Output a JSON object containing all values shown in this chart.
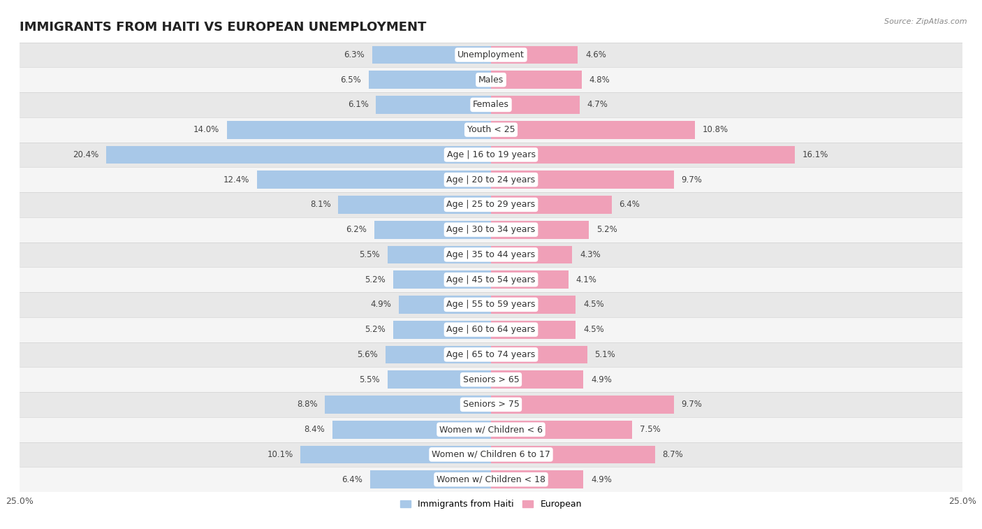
{
  "title": "IMMIGRANTS FROM HAITI VS EUROPEAN UNEMPLOYMENT",
  "source": "Source: ZipAtlas.com",
  "categories": [
    "Unemployment",
    "Males",
    "Females",
    "Youth < 25",
    "Age | 16 to 19 years",
    "Age | 20 to 24 years",
    "Age | 25 to 29 years",
    "Age | 30 to 34 years",
    "Age | 35 to 44 years",
    "Age | 45 to 54 years",
    "Age | 55 to 59 years",
    "Age | 60 to 64 years",
    "Age | 65 to 74 years",
    "Seniors > 65",
    "Seniors > 75",
    "Women w/ Children < 6",
    "Women w/ Children 6 to 17",
    "Women w/ Children < 18"
  ],
  "haiti_values": [
    6.3,
    6.5,
    6.1,
    14.0,
    20.4,
    12.4,
    8.1,
    6.2,
    5.5,
    5.2,
    4.9,
    5.2,
    5.6,
    5.5,
    8.8,
    8.4,
    10.1,
    6.4
  ],
  "european_values": [
    4.6,
    4.8,
    4.7,
    10.8,
    16.1,
    9.7,
    6.4,
    5.2,
    4.3,
    4.1,
    4.5,
    4.5,
    5.1,
    4.9,
    9.7,
    7.5,
    8.7,
    4.9
  ],
  "haiti_color": "#a8c8e8",
  "european_color": "#f0a0b8",
  "haiti_label": "Immigrants from Haiti",
  "european_label": "European",
  "xlim": 25.0,
  "row_light": "#f5f5f5",
  "row_dark": "#e8e8e8",
  "title_fontsize": 13,
  "label_fontsize": 9,
  "value_fontsize": 8.5
}
